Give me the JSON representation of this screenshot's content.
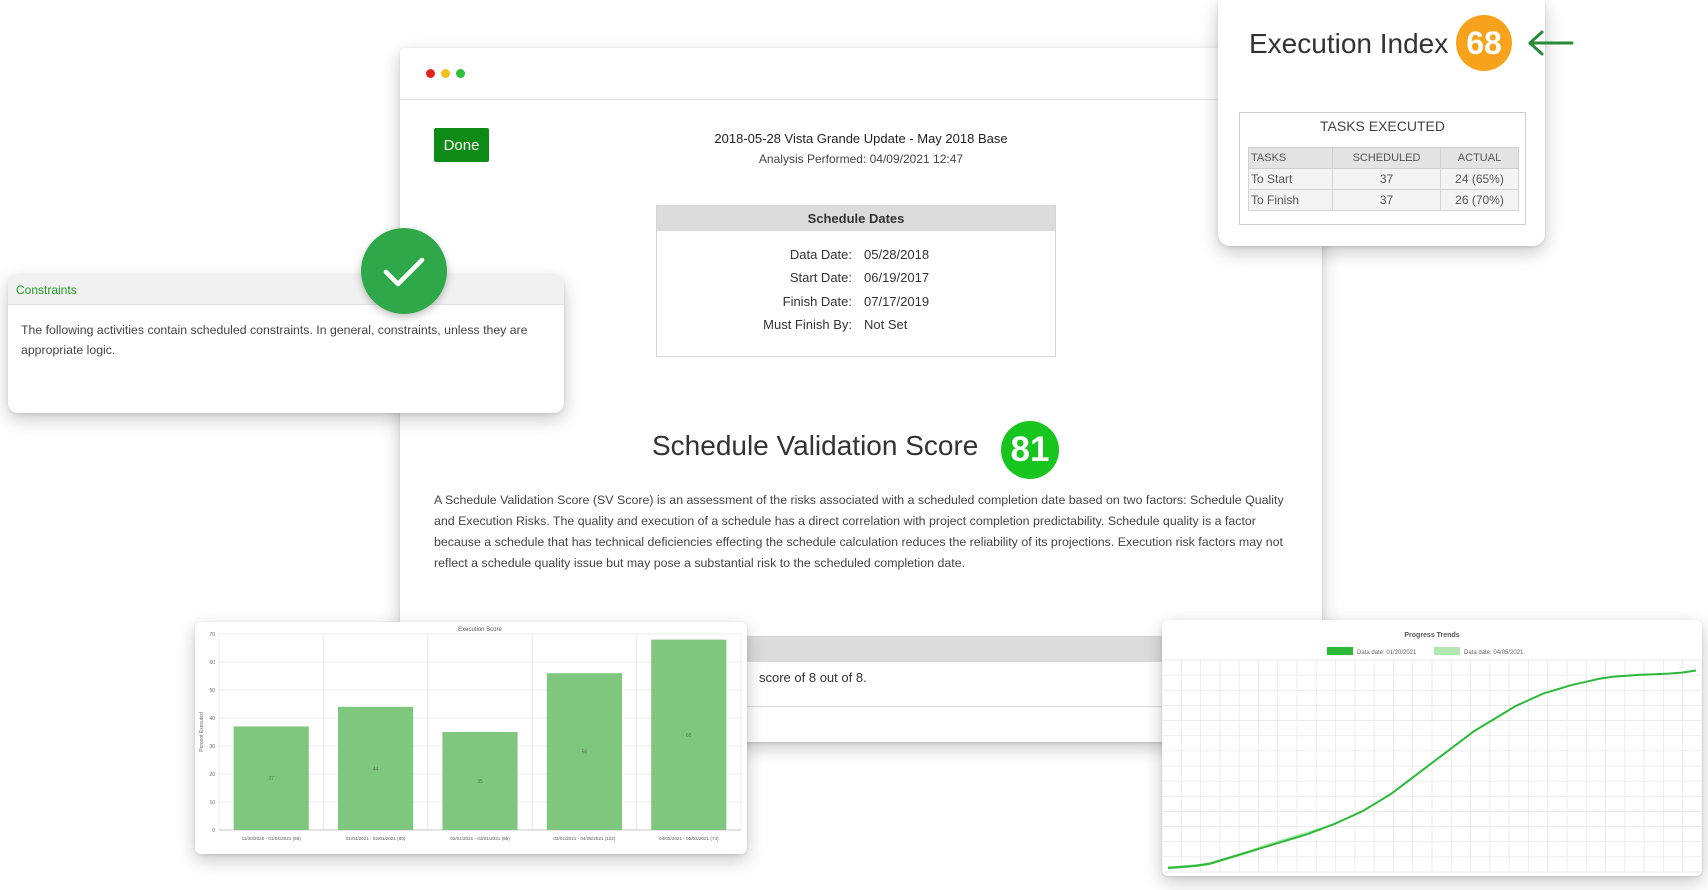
{
  "main_window": {
    "done_label": "Done",
    "report_title": "2018-05-28 Vista Grande Update - May 2018 Base",
    "analysis_performed": "Analysis Performed: 04/09/2021 12:47",
    "schedule_dates": {
      "heading": "Schedule Dates",
      "rows": [
        {
          "label": "Data Date:",
          "value": "05/28/2018"
        },
        {
          "label": "Start Date:",
          "value": "06/19/2017"
        },
        {
          "label": "Finish Date:",
          "value": "07/17/2019"
        },
        {
          "label": "Must Finish By:",
          "value": "Not Set"
        }
      ]
    },
    "score_title": "Schedule Validation Score",
    "score_value": "81",
    "description": "A Schedule Validation Score (SV Score) is an assessment of the risks associated with a scheduled completion date based on two factors: Schedule Quality and Execution Risks. The quality and execution of a schedule has a direct correlation with project completion predictability. Schedule quality is a factor because a schedule that has technical deficiencies effecting the schedule calculation reduces the reliability of its projections. Execution risk factors may not reflect a schedule quality issue but may pose a substantial risk to the scheduled completion date.",
    "quality_box_text": "score of 8 out of 8."
  },
  "constraints": {
    "heading": "Constraints",
    "body": "The following activities contain scheduled constraints.  In general, constraints, unless they are appropriate logic."
  },
  "execution_index": {
    "title": "Execution Index",
    "value": "68",
    "tasks_heading": "TASKS EXECUTED",
    "columns": [
      "TASKS",
      "SCHEDULED",
      "ACTUAL"
    ],
    "rows": [
      [
        "To Start",
        "37",
        "24 (65%)"
      ],
      [
        "To Finish",
        "37",
        "26 (70%)"
      ]
    ]
  },
  "icons": {
    "check": "check-icon",
    "arrow": "arrow-left-icon"
  },
  "colors": {
    "done_green": "#0e8a16",
    "score_green": "#18c51f",
    "index_orange": "#f6a21b",
    "bar_green": "#7fc67f",
    "line_dark": "#2db83a",
    "line_light": "#b2e8b0",
    "arrow_green": "#2b8a3a"
  },
  "chart_data": [
    {
      "type": "bar",
      "title": "Execution Score",
      "ylabel": "Percent Executed",
      "xlabel": "",
      "ylim": [
        0,
        70
      ],
      "yticks": [
        0,
        10,
        20,
        30,
        40,
        50,
        60,
        70
      ],
      "grid": true,
      "categories": [
        "11/30/2020 - 01/04/2021 (68)",
        "01/04/2021 - 02/01/2021 (80)",
        "02/01/2021 - 03/01/2021 (95)",
        "03/01/2021 - 04/05/2021 (122)",
        "04/05/2021 - 05/03/2021 (74)"
      ],
      "values": [
        37,
        44,
        35,
        56,
        68
      ],
      "data_labels": [
        "37",
        "44",
        "35",
        "56",
        "68"
      ]
    },
    {
      "type": "line",
      "title": "Progress Trends",
      "grid": true,
      "legend_position": "top",
      "series": [
        {
          "name": "Data date: 01/20/2021",
          "values": [
            1,
            1.5,
            2,
            3,
            5,
            7,
            9,
            11,
            13,
            15,
            17,
            19.5,
            22,
            25,
            28,
            32,
            36,
            41,
            46,
            51,
            56,
            61,
            66,
            70,
            74,
            78,
            81,
            84,
            86,
            88,
            89.5,
            91,
            92,
            92.5,
            93,
            93.2,
            93.5,
            94,
            95
          ]
        },
        {
          "name": "Data date: 04/05/2021",
          "values": [
            1,
            1.5,
            2,
            3,
            5,
            7,
            9,
            11.5,
            13.5,
            15.5,
            17.5,
            19.5
          ]
        }
      ]
    }
  ]
}
